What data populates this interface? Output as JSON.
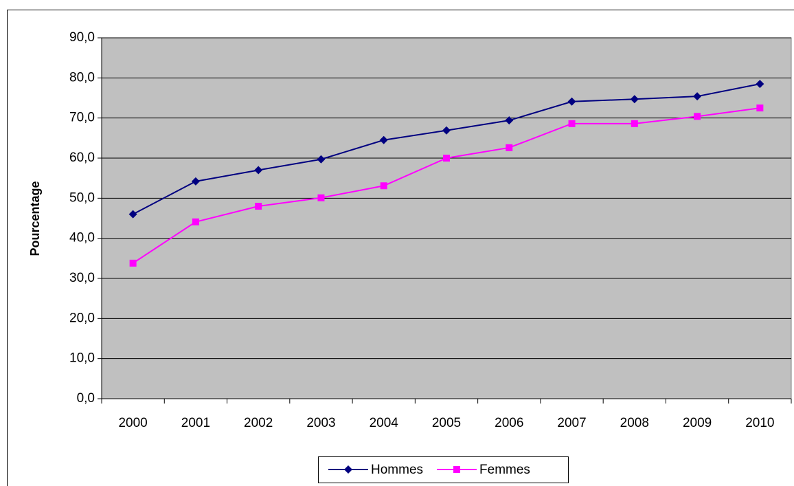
{
  "chart_data": {
    "type": "line",
    "y_label": "Pourcentage",
    "categories": [
      "2000",
      "2001",
      "2002",
      "2003",
      "2004",
      "2005",
      "2006",
      "2007",
      "2008",
      "2009",
      "2010"
    ],
    "series": [
      {
        "name": "Hommes",
        "color": "#000080",
        "marker": "diamond",
        "values": [
          46.0,
          54.2,
          57.0,
          59.7,
          64.5,
          66.9,
          69.4,
          74.1,
          74.7,
          75.4,
          78.5
        ]
      },
      {
        "name": "Femmes",
        "color": "#ff00ff",
        "marker": "square",
        "values": [
          33.8,
          44.1,
          48.0,
          50.1,
          53.1,
          60.0,
          62.6,
          68.6,
          68.6,
          70.4,
          72.5
        ]
      }
    ],
    "ylim": [
      0,
      90
    ],
    "yticks": [
      {
        "value": 0,
        "label": "0,0"
      },
      {
        "value": 10,
        "label": "10,0"
      },
      {
        "value": 20,
        "label": "20,0"
      },
      {
        "value": 30,
        "label": "30,0"
      },
      {
        "value": 40,
        "label": "40,0"
      },
      {
        "value": 50,
        "label": "50,0"
      },
      {
        "value": 60,
        "label": "60,0"
      },
      {
        "value": 70,
        "label": "70,0"
      },
      {
        "value": 80,
        "label": "80,0"
      },
      {
        "value": 90,
        "label": "90,0"
      }
    ],
    "grid": true,
    "plot_background": "#c0c0c0",
    "legend": "bottom"
  }
}
